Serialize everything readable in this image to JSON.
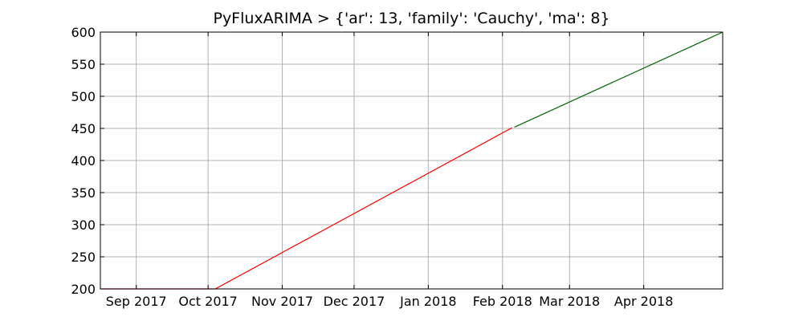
{
  "chart_data": {
    "type": "line",
    "title": "PyFluxARIMA > {'ar': 13, 'family': 'Cauchy', 'ma': 8}",
    "xlabel": "",
    "ylabel": "",
    "x_range": [
      "2017-08-17",
      "2018-05-04"
    ],
    "ylim": [
      200,
      600
    ],
    "grid": true,
    "yticks": [
      200,
      250,
      300,
      350,
      400,
      450,
      500,
      550,
      600
    ],
    "xticks": [
      {
        "date": "2017-09-01",
        "label": "Sep 2017"
      },
      {
        "date": "2017-10-01",
        "label": "Oct 2017"
      },
      {
        "date": "2017-11-01",
        "label": "Nov 2017"
      },
      {
        "date": "2017-12-01",
        "label": "Dec 2017"
      },
      {
        "date": "2018-01-01",
        "label": "Jan 2018"
      },
      {
        "date": "2018-02-01",
        "label": "Feb 2018"
      },
      {
        "date": "2018-03-01",
        "label": "Mar 2018"
      },
      {
        "date": "2018-04-01",
        "label": "Apr 2018"
      }
    ],
    "series": [
      {
        "color": "#ff0000",
        "points": [
          {
            "x": "2017-08-17",
            "y": 200
          },
          {
            "x": "2017-10-04",
            "y": 200
          },
          {
            "x": "2018-02-05",
            "y": 451
          }
        ]
      },
      {
        "color": "#006400",
        "points": [
          {
            "x": "2018-02-06",
            "y": 452
          },
          {
            "x": "2018-05-04",
            "y": 600
          }
        ]
      }
    ]
  }
}
